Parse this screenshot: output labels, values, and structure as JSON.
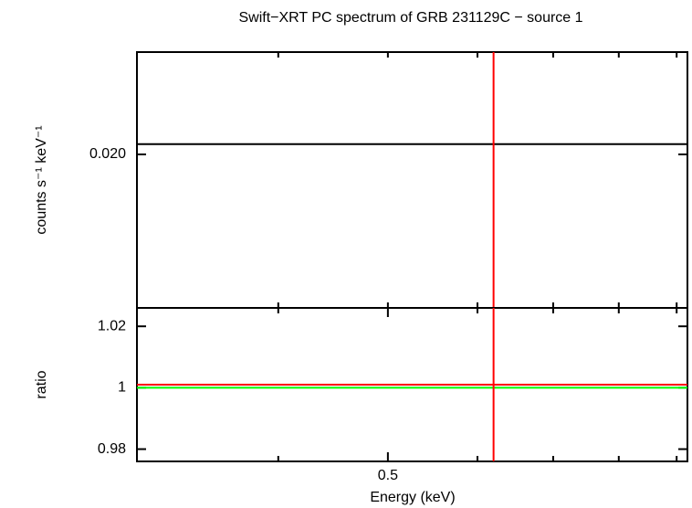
{
  "chart_data": [
    {
      "type": "line",
      "title": "Swift−XRT PC spectrum of GRB 231129C − source 1",
      "ylabel": "counts s⁻¹ keV⁻¹",
      "xscale": "log",
      "xlim": [
        0.3,
        0.92
      ],
      "xminor": [
        0.4,
        0.5,
        0.6,
        0.7,
        0.8,
        0.9
      ],
      "ylim": [
        0.0155,
        0.023
      ],
      "yticks": [
        {
          "value": 0.02,
          "label": "0.020"
        }
      ],
      "x": [
        0.3,
        0.92
      ],
      "series": [
        {
          "color": "#000000",
          "values": [
            0.0203,
            0.0203
          ]
        }
      ],
      "data_x": [
        0.62
      ],
      "data_color": "#ff0000"
    },
    {
      "type": "line",
      "ylabel": "ratio",
      "xlabel": "Energy (keV)",
      "xscale": "log",
      "xlim": [
        0.3,
        0.92
      ],
      "xticks": [
        0.5
      ],
      "xminor": [
        0.4,
        0.6,
        0.7,
        0.8,
        0.9
      ],
      "ylim": [
        0.976,
        1.026
      ],
      "yticks": [
        0.98,
        1,
        1.02
      ],
      "x": [
        0.3,
        0.92
      ],
      "series": [
        {
          "color": "#00ff00",
          "values": [
            1,
            1
          ]
        },
        {
          "color": "#ff0000",
          "values": [
            1.001,
            1.001
          ]
        }
      ],
      "data_x": [
        0.62
      ],
      "data_color": "#ff0000"
    }
  ]
}
